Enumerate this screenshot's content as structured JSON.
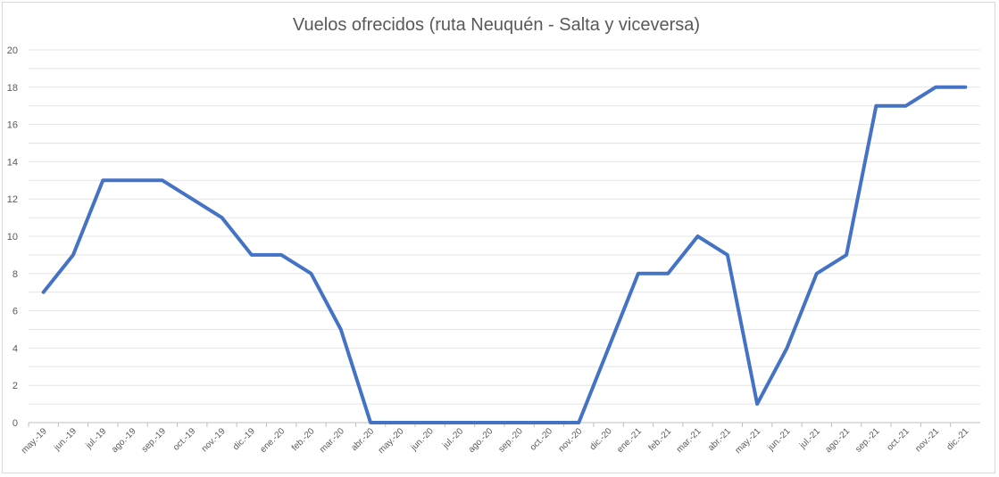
{
  "chart_data": {
    "type": "line",
    "title": "Vuelos ofrecidos (ruta Neuquén - Salta y viceversa)",
    "xlabel": "",
    "ylabel": "",
    "ylim": [
      0,
      20
    ],
    "yticks": [
      0,
      2,
      4,
      6,
      8,
      10,
      12,
      14,
      16,
      18,
      20
    ],
    "grid": true,
    "legend": "none",
    "categories": [
      "may.-19",
      "jun.-19",
      "jul.-19",
      "ago.-19",
      "sep.-19",
      "oct.-19",
      "nov.-19",
      "dic.-19",
      "ene.-20",
      "feb.-20",
      "mar.-20",
      "abr.-20",
      "may.-20",
      "jun.-20",
      "jul.-20",
      "ago.-20",
      "sep.-20",
      "oct.-20",
      "nov.-20",
      "dic.-20",
      "ene.-21",
      "feb.-21",
      "mar.-21",
      "abr.-21",
      "may.-21",
      "jun.-21",
      "jul.-21",
      "ago.-21",
      "sep.-21",
      "oct.-21",
      "nov.-21",
      "dic.-21"
    ],
    "series": [
      {
        "values": [
          7,
          9,
          13,
          13,
          13,
          12,
          11,
          9,
          9,
          8,
          5,
          0,
          0,
          0,
          0,
          0,
          0,
          0,
          0,
          4,
          8,
          8,
          10,
          9,
          1,
          4,
          8,
          9,
          17,
          17,
          18,
          18
        ],
        "color": "#4472c4"
      }
    ]
  }
}
